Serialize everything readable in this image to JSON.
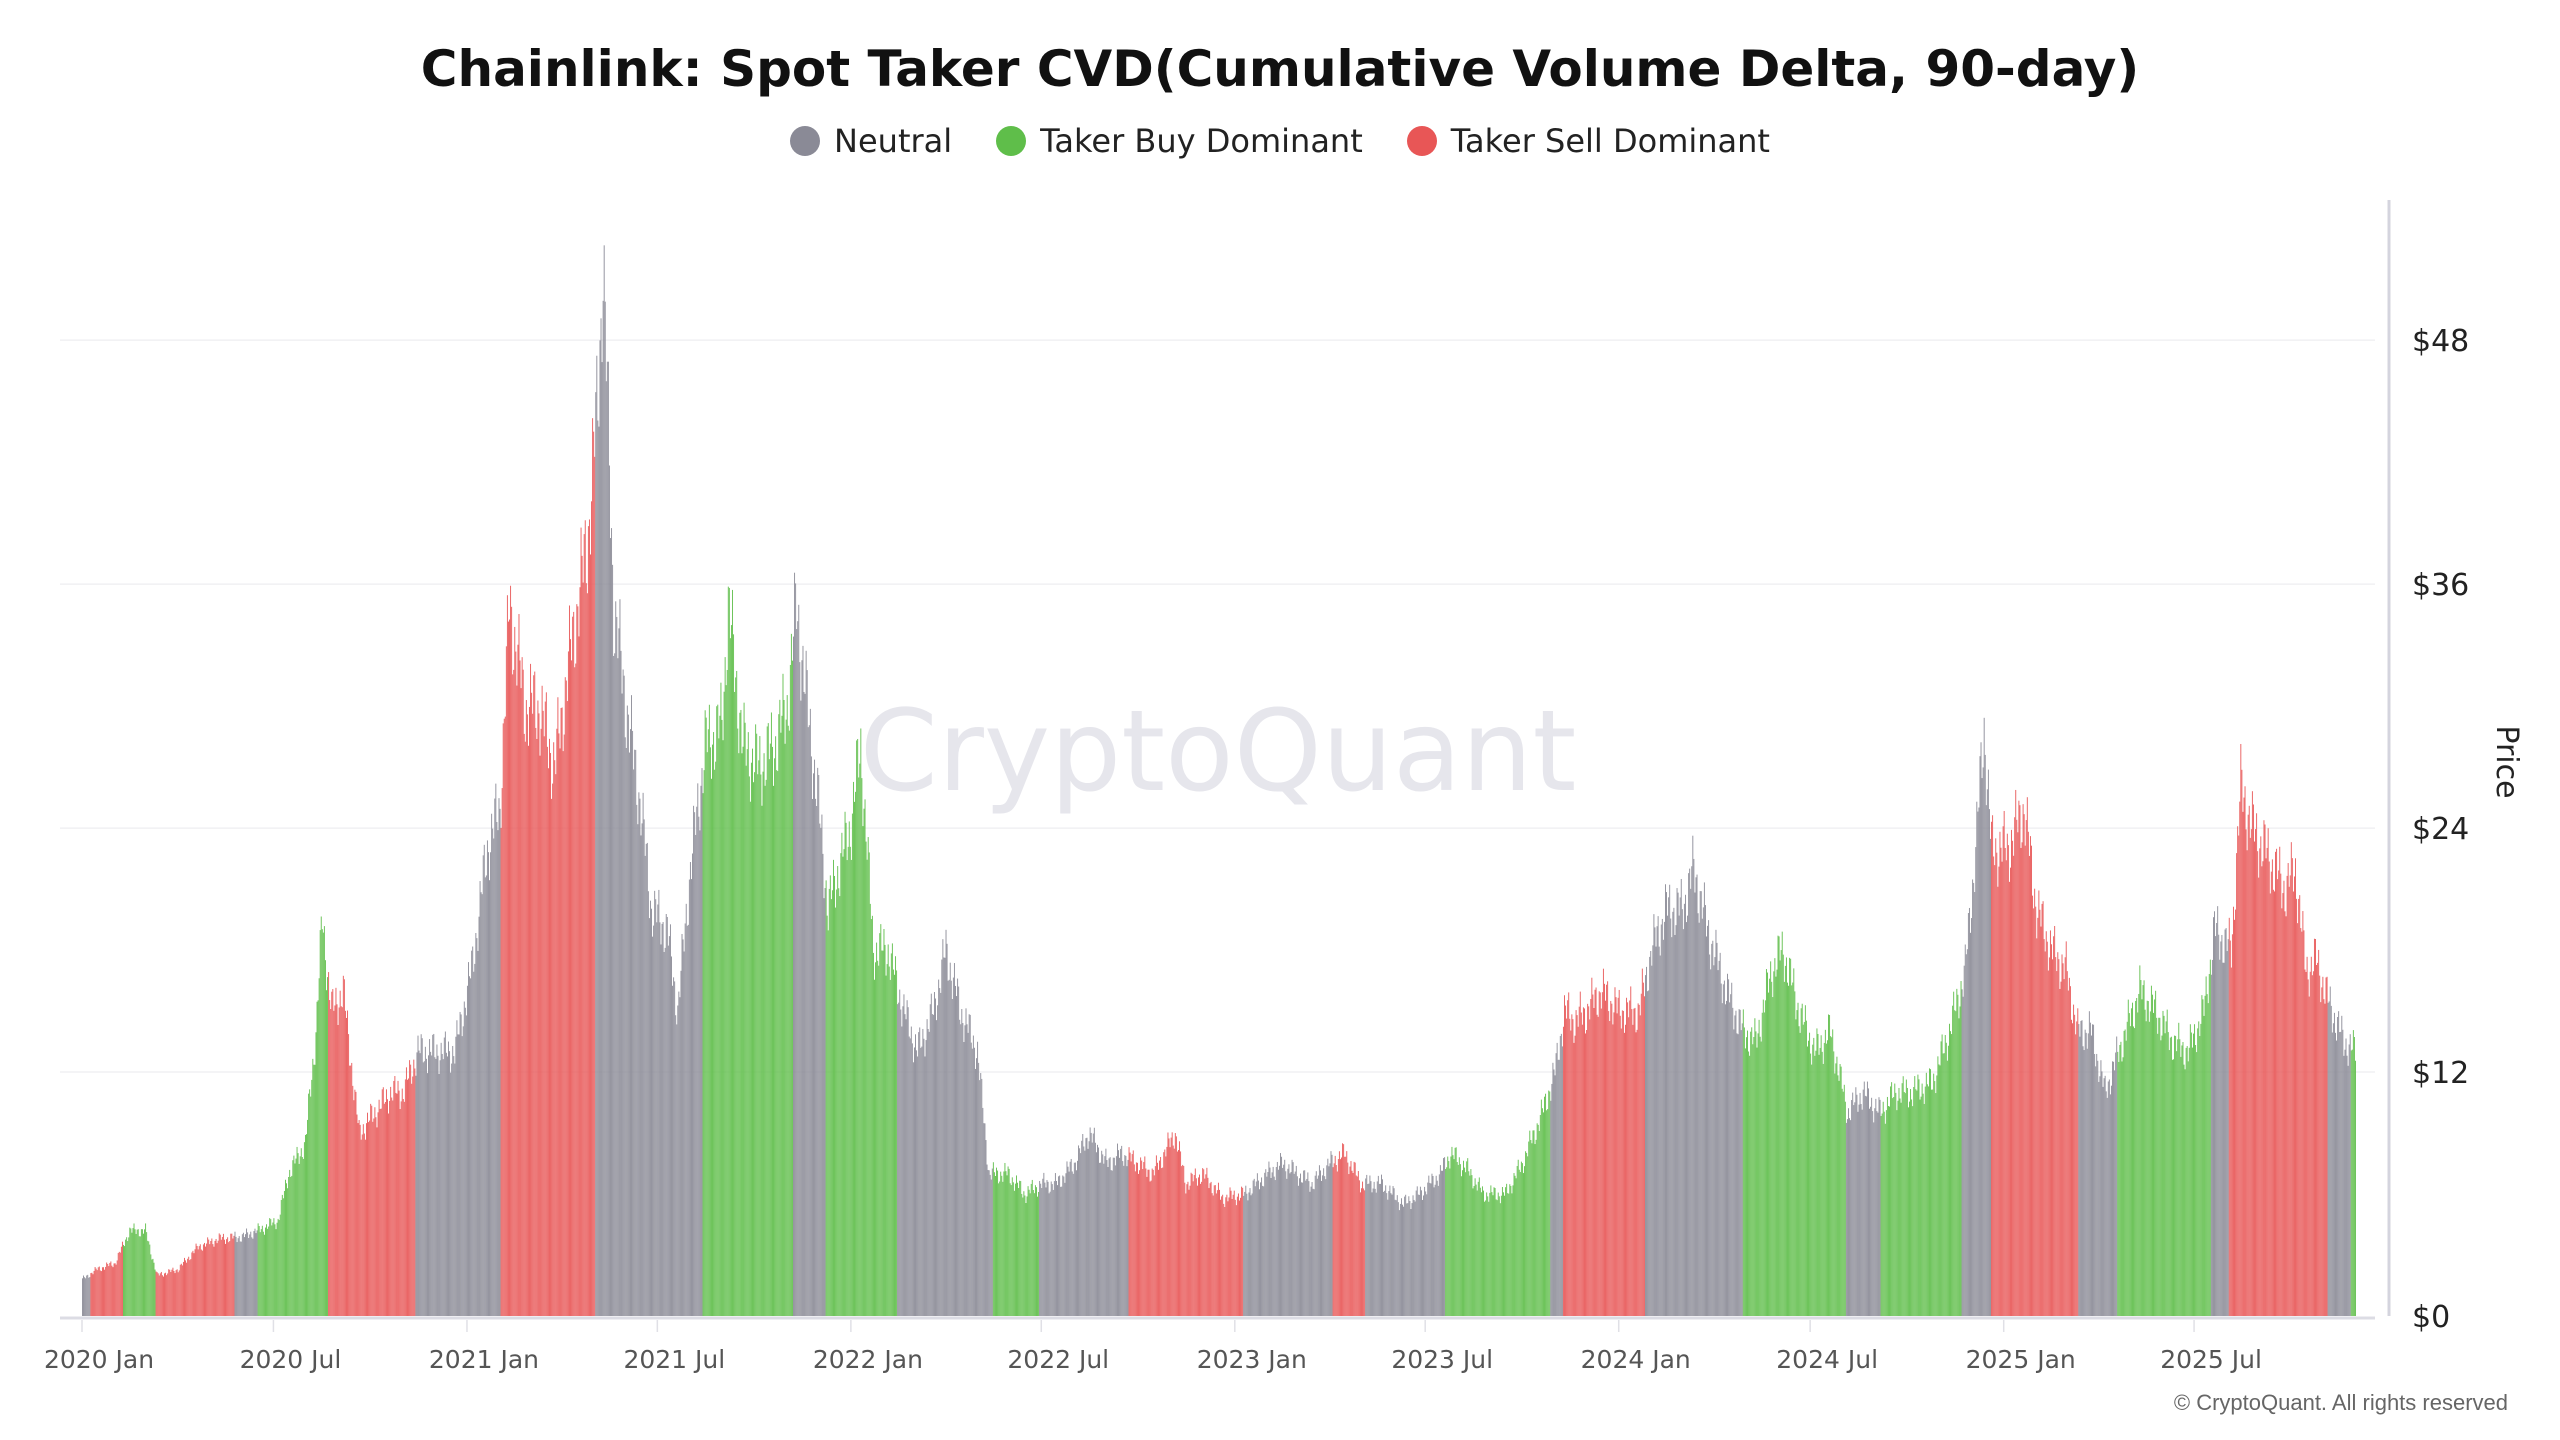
{
  "chart_data": {
    "type": "bar",
    "title": "Chainlink: Spot Taker CVD(Cumulative Volume Delta, 90-day)",
    "ylabel": "Price",
    "ylim": [
      0,
      54
    ],
    "yticks": [
      "$0",
      "$12",
      "$24",
      "$36",
      "$48"
    ],
    "ytick_values": [
      0,
      12,
      24,
      36,
      48
    ],
    "xlim": [
      "2020-01-01",
      "2025-12-01"
    ],
    "xticks": [
      {
        "label": "2020 Jan",
        "date": "2020-01-01"
      },
      {
        "label": "2020 Jul",
        "date": "2020-07-01"
      },
      {
        "label": "2021 Jan",
        "date": "2021-01-01"
      },
      {
        "label": "2021 Jul",
        "date": "2021-07-01"
      },
      {
        "label": "2022 Jan",
        "date": "2022-01-01"
      },
      {
        "label": "2022 Jul",
        "date": "2022-07-01"
      },
      {
        "label": "2023 Jan",
        "date": "2023-01-01"
      },
      {
        "label": "2023 Jul",
        "date": "2023-07-01"
      },
      {
        "label": "2024 Jan",
        "date": "2024-01-01"
      },
      {
        "label": "2024 Jul",
        "date": "2024-07-01"
      },
      {
        "label": "2025 Jan",
        "date": "2025-01-01"
      },
      {
        "label": "2025 Jul",
        "date": "2025-07-01"
      }
    ],
    "grid": true,
    "legend_position": "top-center",
    "legend": [
      {
        "name": "Neutral",
        "key": "neutral",
        "color": "#8a8a96"
      },
      {
        "name": "Taker Buy Dominant",
        "key": "buy",
        "color": "#5fbe4a"
      },
      {
        "name": "Taker Sell Dominant",
        "key": "sell",
        "color": "#e85656"
      }
    ],
    "regimes": [
      {
        "start": "2020-01-01",
        "end": "2020-01-09",
        "state": "neutral"
      },
      {
        "start": "2020-01-09",
        "end": "2020-02-09",
        "state": "sell"
      },
      {
        "start": "2020-02-09",
        "end": "2020-03-11",
        "state": "buy"
      },
      {
        "start": "2020-03-11",
        "end": "2020-05-25",
        "state": "sell"
      },
      {
        "start": "2020-05-25",
        "end": "2020-06-16",
        "state": "neutral"
      },
      {
        "start": "2020-06-16",
        "end": "2020-08-22",
        "state": "buy"
      },
      {
        "start": "2020-08-22",
        "end": "2020-11-13",
        "state": "sell"
      },
      {
        "start": "2020-11-13",
        "end": "2021-02-02",
        "state": "neutral"
      },
      {
        "start": "2021-02-02",
        "end": "2021-05-03",
        "state": "sell"
      },
      {
        "start": "2021-05-03",
        "end": "2021-08-13",
        "state": "neutral"
      },
      {
        "start": "2021-08-13",
        "end": "2021-11-07",
        "state": "buy"
      },
      {
        "start": "2021-11-07",
        "end": "2021-12-08",
        "state": "neutral"
      },
      {
        "start": "2021-12-08",
        "end": "2022-02-14",
        "state": "buy"
      },
      {
        "start": "2022-02-14",
        "end": "2022-05-16",
        "state": "neutral"
      },
      {
        "start": "2022-05-16",
        "end": "2022-06-29",
        "state": "buy"
      },
      {
        "start": "2022-06-29",
        "end": "2022-09-22",
        "state": "neutral"
      },
      {
        "start": "2022-09-22",
        "end": "2023-01-09",
        "state": "sell"
      },
      {
        "start": "2023-01-09",
        "end": "2023-04-04",
        "state": "neutral"
      },
      {
        "start": "2023-04-04",
        "end": "2023-05-05",
        "state": "sell"
      },
      {
        "start": "2023-05-05",
        "end": "2023-07-20",
        "state": "neutral"
      },
      {
        "start": "2023-07-20",
        "end": "2023-10-28",
        "state": "buy"
      },
      {
        "start": "2023-10-28",
        "end": "2023-11-09",
        "state": "neutral"
      },
      {
        "start": "2023-11-09",
        "end": "2024-01-26",
        "state": "sell"
      },
      {
        "start": "2024-01-26",
        "end": "2024-04-28",
        "state": "neutral"
      },
      {
        "start": "2024-04-28",
        "end": "2024-08-04",
        "state": "buy"
      },
      {
        "start": "2024-08-04",
        "end": "2024-09-06",
        "state": "neutral"
      },
      {
        "start": "2024-09-06",
        "end": "2024-11-22",
        "state": "buy"
      },
      {
        "start": "2024-11-22",
        "end": "2024-12-20",
        "state": "neutral"
      },
      {
        "start": "2024-12-20",
        "end": "2025-03-13",
        "state": "sell"
      },
      {
        "start": "2025-03-13",
        "end": "2025-04-19",
        "state": "neutral"
      },
      {
        "start": "2025-04-19",
        "end": "2025-07-17",
        "state": "buy"
      },
      {
        "start": "2025-07-17",
        "end": "2025-08-03",
        "state": "neutral"
      },
      {
        "start": "2025-08-03",
        "end": "2025-11-05",
        "state": "sell"
      },
      {
        "start": "2025-11-05",
        "end": "2025-11-27",
        "state": "neutral"
      },
      {
        "start": "2025-11-27",
        "end": "2025-12-01",
        "state": "buy"
      }
    ],
    "price": [
      [
        "2020-01-01",
        1.8
      ],
      [
        "2020-01-15",
        2.3
      ],
      [
        "2020-02-01",
        2.6
      ],
      [
        "2020-02-15",
        4.2
      ],
      [
        "2020-03-01",
        4.2
      ],
      [
        "2020-03-12",
        2.0
      ],
      [
        "2020-04-01",
        2.3
      ],
      [
        "2020-04-20",
        3.4
      ],
      [
        "2020-05-10",
        3.8
      ],
      [
        "2020-06-01",
        3.9
      ],
      [
        "2020-06-20",
        4.3
      ],
      [
        "2020-07-05",
        4.7
      ],
      [
        "2020-07-15",
        7.0
      ],
      [
        "2020-07-31",
        8.5
      ],
      [
        "2020-08-10",
        14
      ],
      [
        "2020-08-16",
        19.5
      ],
      [
        "2020-08-25",
        15
      ],
      [
        "2020-09-05",
        16
      ],
      [
        "2020-09-20",
        9
      ],
      [
        "2020-10-05",
        10
      ],
      [
        "2020-10-20",
        11
      ],
      [
        "2020-11-01",
        11
      ],
      [
        "2020-11-15",
        13
      ],
      [
        "2020-12-01",
        13
      ],
      [
        "2020-12-20",
        13
      ],
      [
        "2021-01-05",
        17
      ],
      [
        "2021-01-20",
        23
      ],
      [
        "2021-02-01",
        25
      ],
      [
        "2021-02-10",
        35
      ],
      [
        "2021-02-25",
        30
      ],
      [
        "2021-03-10",
        30
      ],
      [
        "2021-03-25",
        27
      ],
      [
        "2021-04-10",
        33
      ],
      [
        "2021-04-25",
        38
      ],
      [
        "2021-05-05",
        45
      ],
      [
        "2021-05-10",
        52
      ],
      [
        "2021-05-20",
        35
      ],
      [
        "2021-06-01",
        30
      ],
      [
        "2021-06-15",
        25
      ],
      [
        "2021-06-25",
        20
      ],
      [
        "2021-07-10",
        19
      ],
      [
        "2021-07-20",
        15
      ],
      [
        "2021-08-01",
        22
      ],
      [
        "2021-08-15",
        28
      ],
      [
        "2021-08-31",
        29
      ],
      [
        "2021-09-06",
        35
      ],
      [
        "2021-09-20",
        28
      ],
      [
        "2021-10-05",
        27
      ],
      [
        "2021-10-20",
        28
      ],
      [
        "2021-11-01",
        30
      ],
      [
        "2021-11-10",
        35
      ],
      [
        "2021-11-20",
        30
      ],
      [
        "2021-12-01",
        25
      ],
      [
        "2021-12-10",
        20
      ],
      [
        "2021-12-20",
        22
      ],
      [
        "2021-12-31",
        24
      ],
      [
        "2022-01-10",
        28
      ],
      [
        "2022-01-22",
        18
      ],
      [
        "2022-02-05",
        18
      ],
      [
        "2022-02-20",
        15
      ],
      [
        "2022-03-05",
        13
      ],
      [
        "2022-03-20",
        15
      ],
      [
        "2022-04-01",
        18
      ],
      [
        "2022-04-15",
        15
      ],
      [
        "2022-05-01",
        13
      ],
      [
        "2022-05-12",
        7
      ],
      [
        "2022-05-30",
        7
      ],
      [
        "2022-06-15",
        6
      ],
      [
        "2022-07-01",
        6.5
      ],
      [
        "2022-07-15",
        6.5
      ],
      [
        "2022-08-01",
        7.5
      ],
      [
        "2022-08-15",
        9
      ],
      [
        "2022-09-01",
        7.5
      ],
      [
        "2022-09-15",
        8
      ],
      [
        "2022-10-01",
        7.5
      ],
      [
        "2022-10-15",
        7
      ],
      [
        "2022-11-05",
        9
      ],
      [
        "2022-11-15",
        6.5
      ],
      [
        "2022-12-01",
        7
      ],
      [
        "2022-12-20",
        5.8
      ],
      [
        "2023-01-10",
        6
      ],
      [
        "2023-02-01",
        7
      ],
      [
        "2023-02-15",
        7.5
      ],
      [
        "2023-03-01",
        7
      ],
      [
        "2023-03-15",
        6.5
      ],
      [
        "2023-04-01",
        7.5
      ],
      [
        "2023-04-15",
        8
      ],
      [
        "2023-05-01",
        6.5
      ],
      [
        "2023-05-20",
        6.5
      ],
      [
        "2023-06-10",
        5.5
      ],
      [
        "2023-06-25",
        6
      ],
      [
        "2023-07-15",
        7
      ],
      [
        "2023-07-25",
        8
      ],
      [
        "2023-08-10",
        7.2
      ],
      [
        "2023-08-25",
        6
      ],
      [
        "2023-09-15",
        6
      ],
      [
        "2023-10-01",
        7.5
      ],
      [
        "2023-10-20",
        10
      ],
      [
        "2023-11-01",
        12
      ],
      [
        "2023-11-10",
        15
      ],
      [
        "2023-11-20",
        14.5
      ],
      [
        "2023-12-01",
        15
      ],
      [
        "2023-12-15",
        16
      ],
      [
        "2024-01-01",
        15
      ],
      [
        "2024-01-20",
        15
      ],
      [
        "2024-02-01",
        18
      ],
      [
        "2024-02-15",
        20
      ],
      [
        "2024-03-01",
        20
      ],
      [
        "2024-03-12",
        22
      ],
      [
        "2024-03-25",
        19
      ],
      [
        "2024-04-12",
        16
      ],
      [
        "2024-04-28",
        14
      ],
      [
        "2024-05-10",
        13.5
      ],
      [
        "2024-05-25",
        17
      ],
      [
        "2024-06-05",
        18
      ],
      [
        "2024-06-20",
        15
      ],
      [
        "2024-07-05",
        13
      ],
      [
        "2024-07-20",
        14
      ],
      [
        "2024-08-05",
        10
      ],
      [
        "2024-08-20",
        11
      ],
      [
        "2024-09-05",
        10
      ],
      [
        "2024-09-20",
        11
      ],
      [
        "2024-10-05",
        11
      ],
      [
        "2024-10-25",
        11.5
      ],
      [
        "2024-11-10",
        14
      ],
      [
        "2024-11-25",
        17
      ],
      [
        "2024-12-05",
        23
      ],
      [
        "2024-12-13",
        29
      ],
      [
        "2024-12-20",
        23
      ],
      [
        "2025-01-05",
        23
      ],
      [
        "2025-01-20",
        25
      ],
      [
        "2025-02-01",
        20
      ],
      [
        "2025-02-15",
        18
      ],
      [
        "2025-03-01",
        17
      ],
      [
        "2025-03-12",
        14
      ],
      [
        "2025-03-25",
        14
      ],
      [
        "2025-04-07",
        11
      ],
      [
        "2025-04-20",
        13
      ],
      [
        "2025-05-10",
        16
      ],
      [
        "2025-05-25",
        15
      ],
      [
        "2025-06-10",
        13.5
      ],
      [
        "2025-06-25",
        13
      ],
      [
        "2025-07-10",
        15
      ],
      [
        "2025-07-20",
        19
      ],
      [
        "2025-08-05",
        18
      ],
      [
        "2025-08-14",
        26
      ],
      [
        "2025-08-25",
        24
      ],
      [
        "2025-09-10",
        22.5
      ],
      [
        "2025-09-25",
        21
      ],
      [
        "2025-10-05",
        22
      ],
      [
        "2025-10-15",
        17
      ],
      [
        "2025-10-25",
        17.5
      ],
      [
        "2025-11-05",
        15.5
      ],
      [
        "2025-11-20",
        13.5
      ],
      [
        "2025-12-01",
        13
      ]
    ]
  },
  "watermark": "CryptoQuant",
  "copyright": "© CryptoQuant. All rights reserved"
}
